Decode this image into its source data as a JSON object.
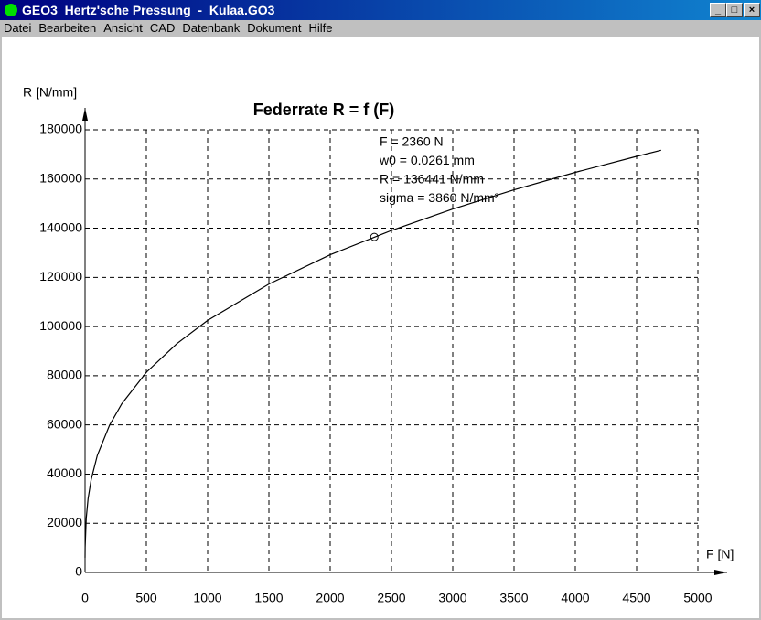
{
  "window": {
    "title": "GEO3  Hertz'sche Pressung  -  Kulaa.GO3"
  },
  "menu": [
    "Datei",
    "Bearbeiten",
    "Ansicht",
    "CAD",
    "Datenbank",
    "Dokument",
    "Hilfe"
  ],
  "chart_data": {
    "type": "line",
    "title": "Federrate R = f (F)",
    "x_label": "F [N]",
    "y_label": "R [N/mm]",
    "x": [
      0.2,
      1,
      10,
      25,
      50,
      100,
      200,
      300,
      500,
      750,
      1000,
      1500,
      2000,
      2500,
      3000,
      3500,
      4000,
      4500,
      4700
    ],
    "values": [
      6000,
      10300,
      22100,
      30000,
      37800,
      47600,
      59900,
      68600,
      81400,
      93100,
      102500,
      117300,
      129200,
      139100,
      147800,
      155600,
      162700,
      169200,
      171700
    ],
    "color": "#000000",
    "point": {
      "x": 2360,
      "y": 136441
    },
    "annotations": [
      "F = 2360 N",
      "w0 = 0.0261 mm",
      "R = 136441 N/mm",
      "sigma = 3860 N/mm²"
    ],
    "xlim": [
      0,
      5000
    ],
    "xticks": [
      0,
      500,
      1000,
      1500,
      2000,
      2500,
      3000,
      3500,
      4000,
      4500,
      5000
    ],
    "ylim": [
      0,
      180000
    ],
    "yticks": [
      0,
      20000,
      40000,
      60000,
      80000,
      100000,
      120000,
      140000,
      160000,
      180000
    ],
    "grid": true
  }
}
